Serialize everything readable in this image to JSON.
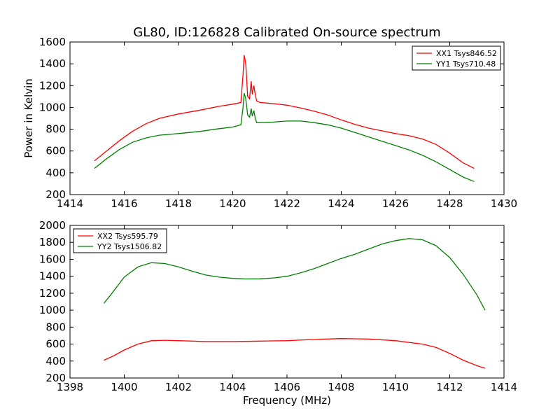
{
  "chart_data": [
    {
      "type": "line",
      "title": "GL80, ID:126828 Calibrated On-source spectrum",
      "xlabel": "",
      "ylabel": "Power in Kelvin",
      "xlim": [
        1414,
        1430
      ],
      "ylim": [
        200,
        1600
      ],
      "xticks": [
        "1414",
        "1416",
        "1418",
        "1420",
        "1422",
        "1424",
        "1426",
        "1428",
        "1430"
      ],
      "yticks": [
        "200",
        "400",
        "600",
        "800",
        "1000",
        "1200",
        "1400",
        "1600"
      ],
      "grid": false,
      "legend": "top-right",
      "series": [
        {
          "name": "XX1 Tsys846.52",
          "color": "#ff0000",
          "x": [
            1414.9,
            1415.3,
            1415.8,
            1416.3,
            1416.8,
            1417.3,
            1418.0,
            1418.8,
            1419.5,
            1420.0,
            1420.3,
            1420.38,
            1420.42,
            1420.48,
            1420.55,
            1420.62,
            1420.68,
            1420.72,
            1420.78,
            1420.82,
            1420.88,
            1421.0,
            1421.5,
            1422.0,
            1422.5,
            1423.0,
            1423.5,
            1424.0,
            1424.5,
            1425.0,
            1425.5,
            1426.0,
            1426.5,
            1427.0,
            1427.5,
            1428.0,
            1428.5,
            1428.9
          ],
          "y": [
            510,
            590,
            690,
            780,
            850,
            900,
            940,
            975,
            1010,
            1030,
            1045,
            1300,
            1480,
            1400,
            1100,
            1080,
            1240,
            1120,
            1200,
            1130,
            1060,
            1045,
            1035,
            1020,
            995,
            965,
            930,
            885,
            845,
            810,
            785,
            760,
            740,
            710,
            660,
            580,
            490,
            440
          ]
        },
        {
          "name": "YY1 Tsys710.48",
          "color": "#008000",
          "x": [
            1414.9,
            1415.3,
            1415.8,
            1416.3,
            1416.8,
            1417.3,
            1418.0,
            1418.8,
            1419.5,
            1420.0,
            1420.3,
            1420.38,
            1420.42,
            1420.48,
            1420.55,
            1420.62,
            1420.68,
            1420.72,
            1420.78,
            1420.82,
            1420.88,
            1421.0,
            1421.5,
            1422.0,
            1422.5,
            1423.0,
            1423.5,
            1424.0,
            1424.5,
            1425.0,
            1425.5,
            1426.0,
            1426.5,
            1427.0,
            1427.5,
            1428.0,
            1428.5,
            1428.9
          ],
          "y": [
            440,
            520,
            610,
            680,
            720,
            745,
            760,
            780,
            805,
            820,
            840,
            1000,
            1130,
            1080,
            930,
            910,
            990,
            920,
            970,
            910,
            860,
            860,
            865,
            875,
            875,
            860,
            840,
            810,
            770,
            730,
            690,
            650,
            610,
            560,
            500,
            430,
            360,
            320
          ]
        }
      ]
    },
    {
      "type": "line",
      "title": "",
      "xlabel": "Frequency (MHz)",
      "ylabel": "",
      "xlim": [
        1398,
        1414
      ],
      "ylim": [
        200,
        2000
      ],
      "xticks": [
        "1398",
        "1400",
        "1402",
        "1404",
        "1406",
        "1408",
        "1410",
        "1412",
        "1414"
      ],
      "yticks": [
        "200",
        "400",
        "600",
        "800",
        "1000",
        "1200",
        "1400",
        "1600",
        "1800",
        "2000"
      ],
      "grid": false,
      "legend": "top-left",
      "series": [
        {
          "name": "XX2 Tsys595.79",
          "color": "#ff0000",
          "x": [
            1399.25,
            1399.6,
            1400.0,
            1400.5,
            1401.0,
            1401.5,
            1402.0,
            1403.0,
            1404.0,
            1405.0,
            1406.0,
            1407.0,
            1408.0,
            1409.0,
            1410.0,
            1411.0,
            1411.5,
            1412.0,
            1412.5,
            1413.0,
            1413.3
          ],
          "y": [
            410,
            460,
            530,
            600,
            640,
            645,
            640,
            630,
            630,
            635,
            640,
            655,
            665,
            660,
            640,
            600,
            560,
            490,
            410,
            345,
            315
          ]
        },
        {
          "name": "YY2 Tsys1506.82",
          "color": "#008000",
          "x": [
            1399.25,
            1399.5,
            1400.0,
            1400.5,
            1401.0,
            1401.5,
            1402.0,
            1402.5,
            1403.0,
            1403.5,
            1404.0,
            1404.5,
            1405.0,
            1405.5,
            1406.0,
            1406.5,
            1407.0,
            1407.5,
            1408.0,
            1408.5,
            1409.0,
            1409.5,
            1410.0,
            1410.5,
            1411.0,
            1411.5,
            1412.0,
            1412.5,
            1413.0,
            1413.3
          ],
          "y": [
            1080,
            1180,
            1390,
            1510,
            1560,
            1550,
            1510,
            1460,
            1415,
            1390,
            1375,
            1368,
            1370,
            1380,
            1400,
            1440,
            1490,
            1550,
            1610,
            1660,
            1720,
            1780,
            1820,
            1845,
            1830,
            1760,
            1620,
            1420,
            1180,
            1000
          ]
        }
      ]
    }
  ]
}
